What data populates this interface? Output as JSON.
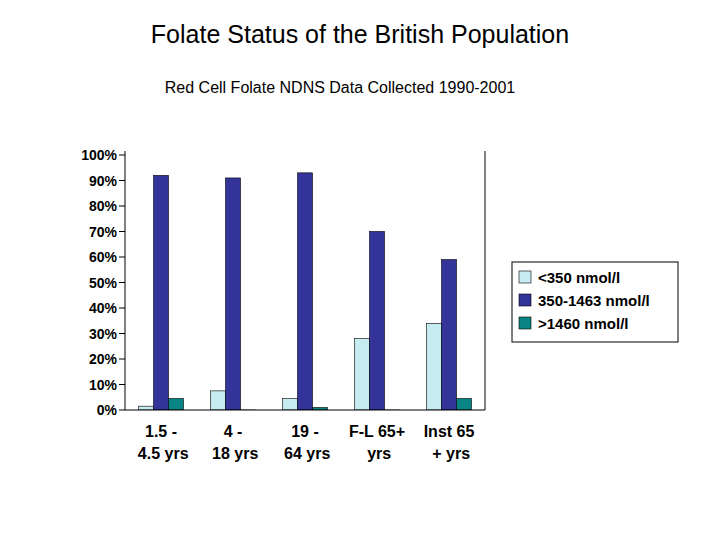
{
  "chart_data": {
    "type": "bar",
    "title": "Folate Status of the British Population",
    "subtitle": "Red Cell Folate NDNS Data Collected 1990-2001",
    "categories": [
      "1.5 - 4.5 yrs",
      "4 - 18 yrs",
      "19 - 64 yrs",
      "F-L 65+ yrs",
      "Inst 65 + yrs"
    ],
    "series": [
      {
        "name": "<350 nmol/l",
        "color": "#c6ecf0",
        "values": [
          1.5,
          7.5,
          4.5,
          28,
          34
        ]
      },
      {
        "name": "350-1463 nmol/l",
        "color": "#333399",
        "values": [
          92,
          91,
          93,
          70,
          59
        ]
      },
      {
        "name": ">1460 nmol/l",
        "color": "#0a8585",
        "values": [
          4.5,
          0,
          1,
          0,
          4.5
        ]
      }
    ],
    "ylim": [
      0,
      100
    ],
    "yticks": [
      {
        "value": 0,
        "label": "0%"
      },
      {
        "value": 10,
        "label": "10%"
      },
      {
        "value": 20,
        "label": "20%"
      },
      {
        "value": 30,
        "label": "30%"
      },
      {
        "value": 40,
        "label": "40%"
      },
      {
        "value": 50,
        "label": "50%"
      },
      {
        "value": 60,
        "label": "60%"
      },
      {
        "value": 70,
        "label": "70%"
      },
      {
        "value": 80,
        "label": "80%"
      },
      {
        "value": 90,
        "label": "90%"
      },
      {
        "value": 100,
        "label": "100%"
      }
    ],
    "grid": false,
    "legend": "right"
  }
}
